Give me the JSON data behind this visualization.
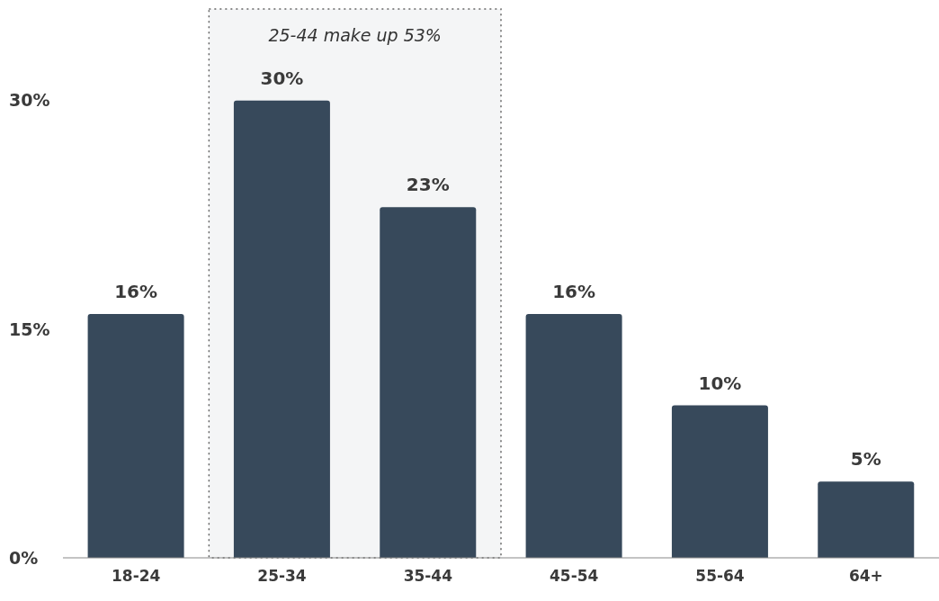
{
  "chart_data": {
    "type": "bar",
    "categories": [
      "18-24",
      "25-34",
      "35-44",
      "45-54",
      "55-64",
      "64+"
    ],
    "values": [
      16,
      30,
      23,
      16,
      10,
      5
    ],
    "value_labels": [
      "16%",
      "30%",
      "23%",
      "16%",
      "10%",
      "5%"
    ],
    "color": "#37495b",
    "ylim": [
      0,
      36
    ],
    "yticks": [
      {
        "value": 0,
        "label": "0%"
      },
      {
        "value": 15,
        "label": "15%"
      },
      {
        "value": 30,
        "label": "30%"
      }
    ],
    "grid": false,
    "legend": false,
    "bands": [
      {
        "axis": "x",
        "from": "25-34",
        "to": "35-44",
        "label": "25-44 make up 53%",
        "color": "#f4f5f6"
      }
    ]
  }
}
